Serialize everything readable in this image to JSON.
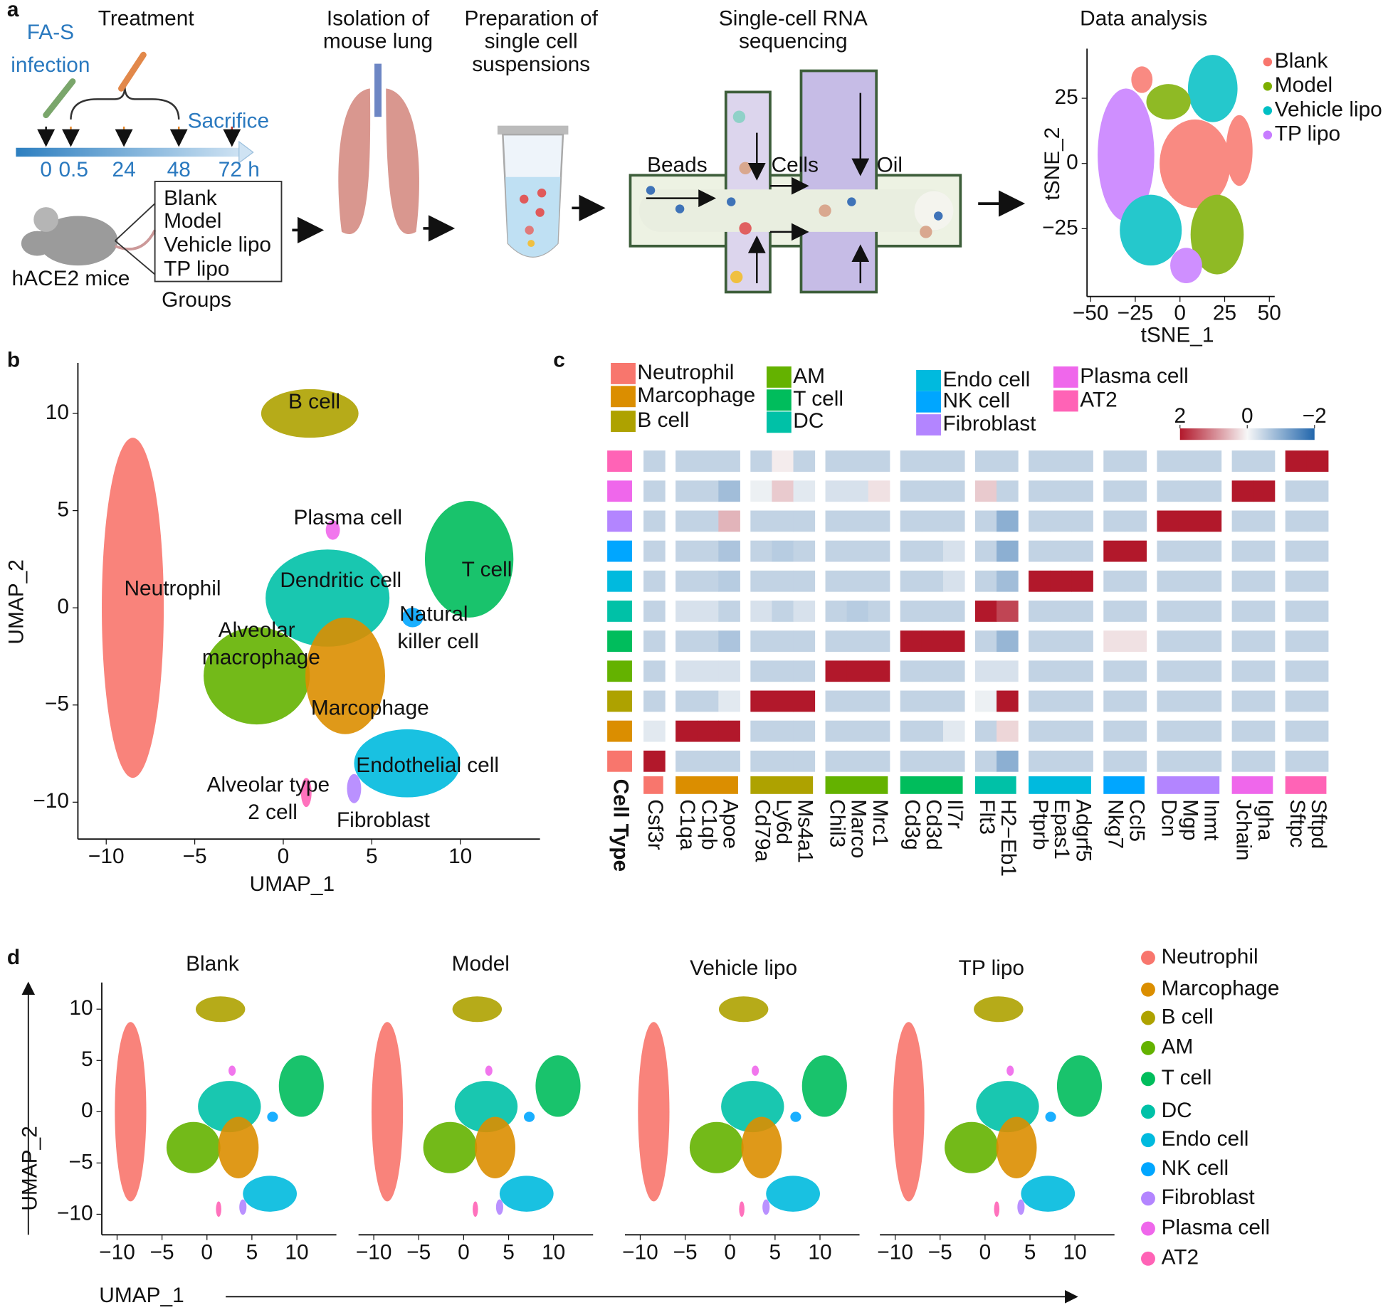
{
  "cell_types": [
    {
      "name": "Neutrophil",
      "color": "#f8766d"
    },
    {
      "name": "Marcophage",
      "color": "#db8e00"
    },
    {
      "name": "B cell",
      "color": "#aea200"
    },
    {
      "name": "AM",
      "color": "#64b200"
    },
    {
      "name": "T cell",
      "color": "#00bd5c"
    },
    {
      "name": "DC",
      "color": "#00c1a7"
    },
    {
      "name": "Endo cell",
      "color": "#00bade"
    },
    {
      "name": "NK cell",
      "color": "#00a6ff"
    },
    {
      "name": "Fibroblast",
      "color": "#b385ff"
    },
    {
      "name": "Plasma cell",
      "color": "#ef67eb"
    },
    {
      "name": "AT2",
      "color": "#ff63b6"
    }
  ],
  "panel_a": {
    "label": "a",
    "treatment": {
      "title": "Treatment",
      "infection": [
        "FA-S",
        "infection"
      ],
      "sacrifice": "Sacrifice",
      "timeline_labels": [
        "0",
        "0.5",
        "24",
        "48",
        "72 h"
      ]
    },
    "groups": {
      "items": [
        "Blank",
        "Model",
        "Vehicle lipo",
        "TP lipo"
      ],
      "caption": "Groups",
      "mouse": "hACE2 mice"
    },
    "steps": [
      [
        "Isolation of",
        "mouse lung"
      ],
      [
        "Preparation of",
        "single cell",
        "suspensions"
      ],
      [
        "Single-cell RNA",
        "sequencing"
      ]
    ],
    "chip_labels": [
      "Beads",
      "Cells",
      "Oil"
    ],
    "tsne": {
      "type": "scatter",
      "title": "Data analysis",
      "xlabel": "tSNE_1",
      "ylabel": "tSNE_2",
      "xlim": [
        -52,
        53
      ],
      "xticks": [
        {
          "value": -50,
          "label": "−50"
        },
        {
          "value": -25,
          "label": "−25"
        },
        0,
        25,
        50
      ],
      "ylim": [
        -51,
        44
      ],
      "yticks": [
        25,
        0,
        {
          "value": -25,
          "label": "−25"
        }
      ],
      "series": [
        {
          "name": "Blank",
          "color": "#f8766d"
        },
        {
          "name": "Model",
          "color": "#7cae00"
        },
        {
          "name": "Vehicle lipo",
          "color": "#00bfc4"
        },
        {
          "name": "TP lipo",
          "color": "#c77cff"
        }
      ]
    }
  },
  "panel_b": {
    "type": "scatter",
    "label": "b",
    "xlabel": "UMAP_1",
    "ylabel": "UMAP_2",
    "xlim": [
      -11.6,
      14.5
    ],
    "xticks": [
      {
        "value": -10,
        "label": "−10"
      },
      {
        "value": -5,
        "label": "−5"
      },
      0,
      5,
      10
    ],
    "ylim": [
      -11.9,
      12.6
    ],
    "yticks": [
      10,
      5,
      0,
      {
        "value": -5,
        "label": "−5"
      },
      {
        "value": -10,
        "label": "−10"
      }
    ],
    "clusters": {
      "x": [
        -8.5,
        3.5,
        1.5,
        -1.5,
        10.5,
        2.5,
        7,
        7.3,
        4,
        2.8,
        1.3
      ],
      "y": [
        0,
        -3.5,
        10,
        -3.5,
        2.5,
        0.5,
        -8,
        -0.5,
        -9.3,
        4,
        -9.5
      ],
      "x_span": [
        3.5,
        4.5,
        5.5,
        6,
        5,
        7,
        6,
        1.2,
        0.8,
        0.8,
        0.6
      ],
      "y_span": [
        17.5,
        6,
        2.5,
        5,
        6,
        5,
        3.5,
        1,
        1.5,
        1,
        1.5
      ]
    },
    "annotations": [
      [
        "B cell"
      ],
      [
        "Plasma cell"
      ],
      [
        "T cell"
      ],
      [
        "Neutrophil"
      ],
      [
        "Dendritic cell"
      ],
      [
        "Natural",
        "killer cell"
      ],
      [
        "Alveolar",
        "macrophage"
      ],
      [
        "Marcophage"
      ],
      [
        "Endothelial cell"
      ],
      [
        "Alveolar type",
        "2 cell"
      ],
      [
        "Fibroblast"
      ]
    ]
  },
  "panel_c": {
    "type": "heatmap",
    "label": "c",
    "row_title": "Cell Type",
    "colorbar": {
      "lim": [
        2,
        -2
      ],
      "ticks": [
        2,
        0,
        {
          "value": -2,
          "label": "−2"
        }
      ]
    },
    "gene_groups": [
      [
        "Csf3r"
      ],
      [
        "C1qa",
        "C1qb",
        "Apoe"
      ],
      [
        "Cd79a",
        "Ly6d",
        "Ms4a1"
      ],
      [
        "Chil3",
        "Marco",
        "Mrc1"
      ],
      [
        "Cd3g",
        "Cd3d",
        "Il7r"
      ],
      [
        "Flt3",
        "H2−Eb1"
      ],
      [
        "Ptprb",
        "Epas1",
        "Adgrf5"
      ],
      [
        "Nkg7",
        "Ccl5"
      ],
      [
        "Dcn",
        "Mgp",
        "Inmt"
      ],
      [
        "Jchain",
        "Igha"
      ],
      [
        "Sftpc",
        "Sftpd"
      ]
    ],
    "values": [
      [
        2,
        -0.5,
        -0.5,
        -0.5,
        -0.5,
        -0.5,
        -0.5,
        -0.5,
        -0.5,
        -0.5,
        -0.5,
        -0.5,
        -0.5,
        -0.5,
        -1,
        -0.5,
        -0.5,
        -0.5,
        -0.5,
        -0.5,
        -0.5,
        -0.5,
        -0.5,
        -0.5,
        -0.5,
        -0.5,
        -0.5
      ],
      [
        -0.2,
        2,
        2,
        2,
        -0.5,
        -0.5,
        -0.5,
        -0.5,
        -0.5,
        -0.5,
        -0.5,
        -0.5,
        -0.2,
        -0.5,
        0.3,
        -0.5,
        -0.5,
        -0.5,
        -0.5,
        -0.5,
        -0.5,
        -0.5,
        -0.5,
        -0.5,
        -0.5,
        -0.5,
        -0.5
      ],
      [
        -0.5,
        -0.5,
        -0.5,
        -0.2,
        2,
        2,
        2,
        -0.5,
        -0.5,
        -0.5,
        -0.5,
        -0.5,
        -0.5,
        -0.1,
        2,
        -0.5,
        -0.5,
        -0.5,
        -0.5,
        -0.5,
        -0.5,
        -0.5,
        -0.5,
        -0.5,
        -0.5,
        -0.5,
        -0.5
      ],
      [
        -0.5,
        -0.3,
        -0.3,
        -0.3,
        -0.5,
        -0.5,
        -0.5,
        2,
        2,
        2,
        -0.5,
        -0.5,
        -0.5,
        -0.3,
        -0.3,
        -0.5,
        -0.5,
        -0.5,
        -0.5,
        -0.5,
        -0.5,
        -0.5,
        -0.5,
        -0.5,
        -0.5,
        -0.5,
        -0.5
      ],
      [
        -0.5,
        -0.5,
        -0.5,
        -0.7,
        -0.5,
        -0.5,
        -0.5,
        -0.5,
        -0.5,
        -0.5,
        2,
        2,
        2,
        -0.5,
        -0.9,
        -0.5,
        -0.5,
        -0.5,
        0.2,
        0.2,
        -0.5,
        -0.5,
        -0.5,
        -0.5,
        -0.5,
        -0.5,
        -0.5
      ],
      [
        -0.5,
        -0.3,
        -0.3,
        -0.5,
        -0.3,
        -0.5,
        -0.3,
        -0.5,
        -0.6,
        -0.5,
        -0.5,
        -0.5,
        -0.5,
        2,
        1.6,
        -0.5,
        -0.5,
        -0.5,
        -0.5,
        -0.5,
        -0.5,
        -0.5,
        -0.5,
        -0.5,
        -0.5,
        -0.5,
        -0.5
      ],
      [
        -0.5,
        -0.5,
        -0.5,
        -0.6,
        -0.5,
        -0.5,
        -0.5,
        -0.5,
        -0.5,
        -0.5,
        -0.5,
        -0.5,
        -0.3,
        -0.5,
        -0.8,
        2,
        2,
        2,
        -0.5,
        -0.5,
        -0.5,
        -0.5,
        -0.5,
        -0.5,
        -0.5,
        -0.5,
        -0.5
      ],
      [
        -0.5,
        -0.5,
        -0.5,
        -0.7,
        -0.5,
        -0.6,
        -0.5,
        -0.5,
        -0.5,
        -0.5,
        -0.5,
        -0.5,
        -0.3,
        -0.5,
        -1,
        -0.5,
        -0.5,
        -0.5,
        2,
        2,
        -0.5,
        -0.5,
        -0.5,
        -0.5,
        -0.5,
        -0.5,
        -0.5
      ],
      [
        -0.5,
        -0.5,
        -0.5,
        0.6,
        -0.5,
        -0.5,
        -0.5,
        -0.5,
        -0.5,
        -0.5,
        -0.5,
        -0.5,
        -0.5,
        -0.5,
        -1,
        -0.5,
        -0.5,
        -0.5,
        -0.5,
        -0.5,
        2,
        2,
        2,
        -0.5,
        -0.5,
        -0.5,
        -0.5
      ],
      [
        -0.5,
        -0.5,
        -0.5,
        -0.8,
        -0.1,
        0.4,
        -0.2,
        -0.3,
        -0.3,
        0.2,
        -0.5,
        -0.5,
        -0.5,
        0.4,
        -0.5,
        -0.5,
        -0.5,
        -0.5,
        -0.5,
        -0.5,
        -0.5,
        -0.5,
        -0.5,
        2,
        2,
        -0.5,
        -0.5
      ],
      [
        -0.5,
        -0.5,
        -0.5,
        -0.5,
        -0.5,
        0.1,
        -0.5,
        -0.5,
        -0.5,
        -0.5,
        -0.5,
        -0.5,
        -0.5,
        -0.5,
        -0.5,
        -0.5,
        -0.5,
        -0.5,
        -0.5,
        -0.5,
        -0.5,
        -0.5,
        -0.5,
        -0.5,
        -0.5,
        2,
        2
      ]
    ]
  },
  "panel_d": {
    "type": "scatter",
    "label": "d",
    "titles": [
      "Blank",
      "Model",
      "Vehicle lipo",
      "TP lipo"
    ],
    "xlabel": "UMAP_1",
    "ylabel": "UMAP_2",
    "xlim": [
      -11.7,
      14.4
    ],
    "xticks": [
      {
        "value": -10,
        "label": "−10"
      },
      {
        "value": -5,
        "label": "−5"
      },
      0,
      5,
      10
    ],
    "ylim": [
      -12,
      12.6
    ],
    "yticks": [
      10,
      5,
      0,
      {
        "value": -5,
        "label": "−5"
      },
      {
        "value": -10,
        "label": "−10"
      }
    ]
  }
}
